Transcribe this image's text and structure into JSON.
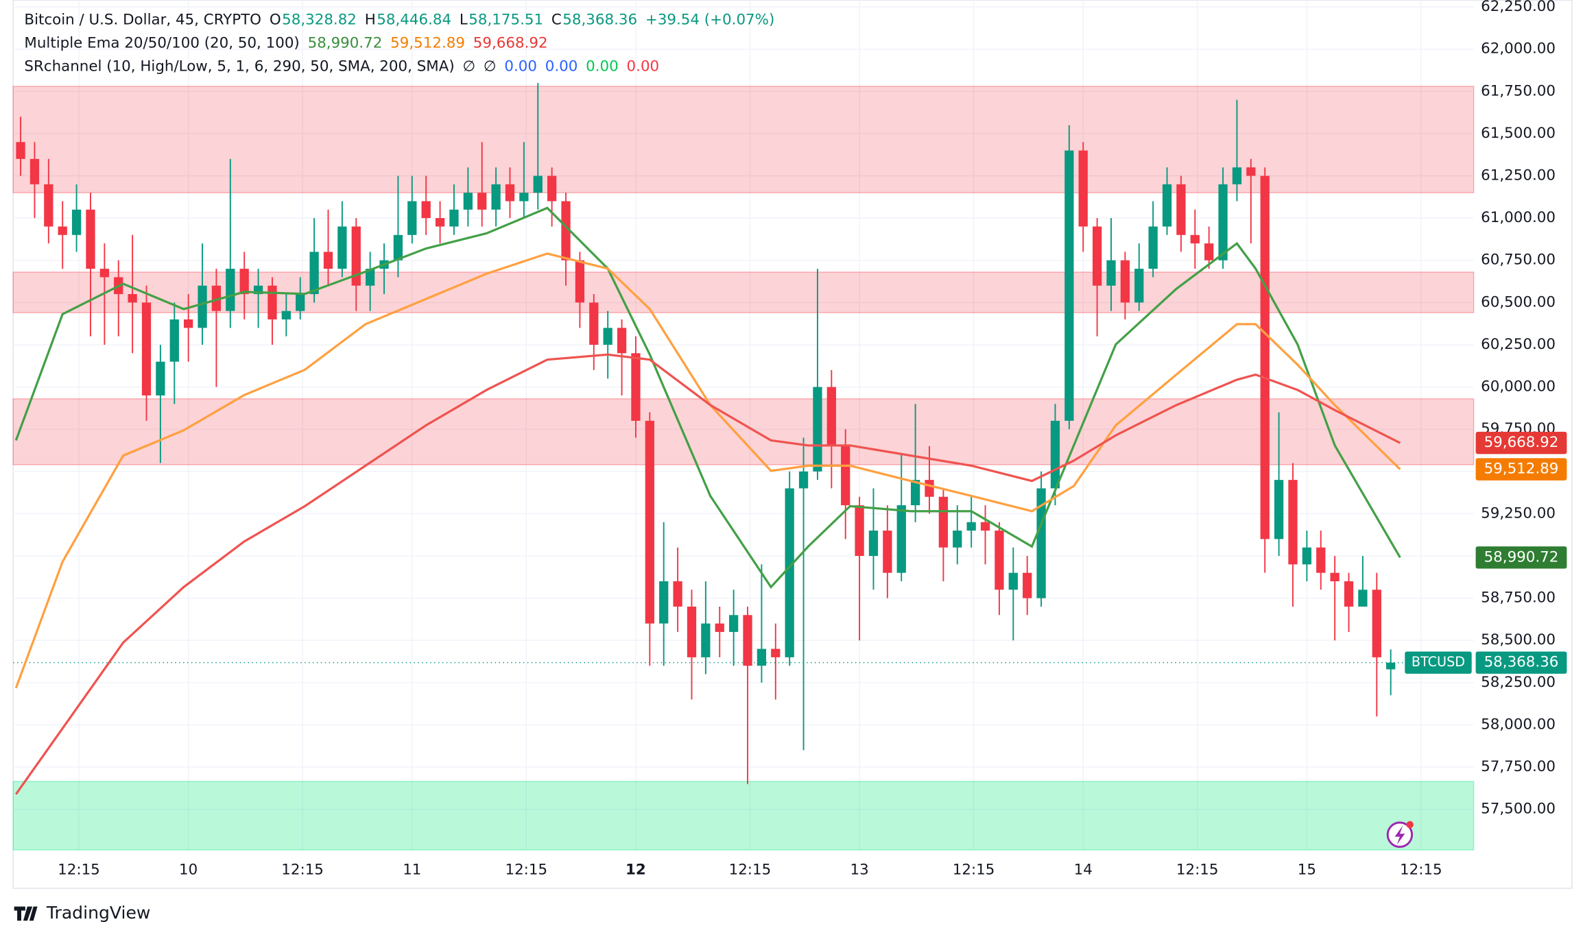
{
  "chart_data": {
    "type": "candlestick",
    "legend": {
      "rows": [
        [
          {
            "text": "Bitcoin / U.S. Dollar, 45, CRYPTO",
            "color": "#131722"
          },
          {
            "text": "O",
            "color": "#131722"
          },
          {
            "text": "58,328.82",
            "color": "#089981"
          },
          {
            "text": "H",
            "color": "#131722"
          },
          {
            "text": "58,446.84",
            "color": "#089981"
          },
          {
            "text": "L",
            "color": "#131722"
          },
          {
            "text": "58,175.51",
            "color": "#089981"
          },
          {
            "text": "C",
            "color": "#131722"
          },
          {
            "text": "58,368.36",
            "color": "#089981"
          },
          {
            "text": "+39.54 (+0.07%)",
            "color": "#089981"
          }
        ],
        [
          {
            "text": "Multiple Ema 20/50/100 (20, 50, 100)",
            "color": "#131722"
          },
          {
            "text": "58,990.72",
            "color": "#388e3c"
          },
          {
            "text": "59,512.89",
            "color": "#f57c00"
          },
          {
            "text": "59,668.92",
            "color": "#e53935"
          }
        ],
        [
          {
            "text": "SRchannel (10, High/Low, 5, 1, 6, 290, 50, SMA, 200, SMA)",
            "color": "#131722"
          },
          {
            "text": "∅",
            "color": "#131722"
          },
          {
            "text": "∅",
            "color": "#131722"
          },
          {
            "text": "0.00",
            "color": "#2962ff"
          },
          {
            "text": "0.00",
            "color": "#2962ff"
          },
          {
            "text": "0.00",
            "color": "#00c853"
          },
          {
            "text": "0.00",
            "color": "#f23645"
          }
        ]
      ]
    },
    "xlim": [
      -18.8,
      137.9
    ],
    "ylim": [
      57260,
      62290
    ],
    "xticks": [
      {
        "value": -11.75,
        "label": "12:15"
      },
      {
        "value": 0,
        "label": "10"
      },
      {
        "value": 12.25,
        "label": "12:15"
      },
      {
        "value": 24,
        "label": "11"
      },
      {
        "value": 36.25,
        "label": "12:15"
      },
      {
        "value": 48,
        "label": "12"
      },
      {
        "value": 60.25,
        "label": "12:15"
      },
      {
        "value": 72,
        "label": "13"
      },
      {
        "value": 84.25,
        "label": "12:15"
      },
      {
        "value": 96,
        "label": "14"
      },
      {
        "value": 108.25,
        "label": "12:15"
      },
      {
        "value": 120,
        "label": "15"
      },
      {
        "value": 132.25,
        "label": "12:15"
      }
    ],
    "yticks": [
      {
        "value": 57500,
        "label": "57,500.00"
      },
      {
        "value": 57750,
        "label": "57,750.00"
      },
      {
        "value": 58000,
        "label": "58,000.00"
      },
      {
        "value": 58250,
        "label": "58,250.00"
      },
      {
        "value": 58500,
        "label": "58,500.00"
      },
      {
        "value": 58750,
        "label": "58,750.00"
      },
      {
        "value": 59000,
        "label": "59,000.00"
      },
      {
        "value": 59250,
        "label": "59,250.00"
      },
      {
        "value": 59500,
        "label": "59,500.00"
      },
      {
        "value": 59750,
        "label": "59,750.00"
      },
      {
        "value": 60000,
        "label": "60,000.00"
      },
      {
        "value": 60250,
        "label": "60,250.00"
      },
      {
        "value": 60500,
        "label": "60,500.00"
      },
      {
        "value": 60750,
        "label": "60,750.00"
      },
      {
        "value": 61000,
        "label": "61,000.00"
      },
      {
        "value": 61250,
        "label": "61,250.00"
      },
      {
        "value": 61500,
        "label": "61,500.00"
      },
      {
        "value": 61750,
        "label": "61,750.00"
      },
      {
        "value": 62000,
        "label": "62,000.00"
      },
      {
        "value": 62250,
        "label": "62,250.00"
      }
    ],
    "grid": true,
    "up_color": "#089981",
    "down_color": "#f23645",
    "zones": [
      {
        "from": 61150,
        "to": 61780,
        "color": "#f23645"
      },
      {
        "from": 60440,
        "to": 60680,
        "color": "#f23645"
      },
      {
        "from": 59540,
        "to": 59930,
        "color": "#f23645"
      },
      {
        "from": 57260,
        "to": 57665,
        "color": "#00e676"
      }
    ],
    "candles": {
      "x": [
        -18,
        -16.5,
        -15,
        -13.5,
        -12,
        -10.5,
        -9,
        -7.5,
        -6,
        -4.5,
        -3,
        -1.5,
        0,
        1.5,
        3,
        4.5,
        6,
        7.5,
        9,
        10.5,
        12,
        13.5,
        15,
        16.5,
        18,
        19.5,
        21,
        22.5,
        24,
        25.5,
        27,
        28.5,
        30,
        31.5,
        33,
        34.5,
        36,
        37.5,
        39,
        40.5,
        42,
        43.5,
        45,
        46.5,
        48,
        49.5,
        51,
        52.5,
        54,
        55.5,
        57,
        58.5,
        60,
        61.5,
        63,
        64.5,
        66,
        67.5,
        69,
        70.5,
        72,
        73.5,
        75,
        76.5,
        78,
        79.5,
        81,
        82.5,
        84,
        85.5,
        87,
        88.5,
        90,
        91.5,
        93,
        94.5,
        96,
        97.5,
        99,
        100.5,
        102,
        103.5,
        105,
        106.5,
        108,
        109.5,
        111,
        112.5,
        114,
        115.5,
        117,
        118.5,
        120,
        121.5,
        123,
        124.5,
        126,
        127.5,
        129
      ],
      "open": [
        61450,
        61350,
        61200,
        60950,
        60900,
        61050,
        60700,
        60650,
        60550,
        60500,
        59950,
        60150,
        60400,
        60350,
        60600,
        60450,
        60700,
        60550,
        60600,
        60400,
        60450,
        60550,
        60800,
        60700,
        60950,
        60600,
        60700,
        60750,
        60900,
        61100,
        61000,
        60950,
        61050,
        61150,
        61050,
        61200,
        61100,
        61150,
        61250,
        61100,
        60750,
        60500,
        60250,
        60350,
        60200,
        59800,
        58600,
        58850,
        58700,
        58400,
        58600,
        58550,
        58650,
        58350,
        58450,
        58400,
        59400,
        59500,
        60000,
        59650,
        59300,
        59000,
        59150,
        58900,
        59300,
        59450,
        59350,
        59050,
        59150,
        59200,
        59150,
        58800,
        58900,
        58750,
        59400,
        59800,
        61400,
        60950,
        60600,
        60750,
        60500,
        60700,
        60950,
        61200,
        60900,
        60850,
        60750,
        61200,
        61300,
        61250,
        59100,
        59450,
        58950,
        59050,
        58900,
        58850,
        58700,
        58800,
        58328.82
      ],
      "high": [
        61600,
        61450,
        61350,
        61100,
        61200,
        61150,
        60850,
        60750,
        60900,
        60600,
        60250,
        60500,
        60550,
        60850,
        60700,
        61350,
        60800,
        60700,
        60650,
        60550,
        60650,
        61000,
        61050,
        61100,
        61000,
        60800,
        60850,
        61250,
        61250,
        61250,
        61100,
        61200,
        61300,
        61450,
        61300,
        61300,
        61450,
        61800,
        61300,
        61150,
        60800,
        60550,
        60450,
        60400,
        60300,
        59850,
        59200,
        59050,
        58800,
        58850,
        58700,
        58800,
        58700,
        58950,
        58600,
        59500,
        59700,
        60700,
        60100,
        59750,
        59350,
        59400,
        59300,
        59600,
        59900,
        59650,
        59400,
        59300,
        59350,
        59300,
        59200,
        59050,
        59000,
        59500,
        59900,
        61550,
        61450,
        61000,
        61000,
        60800,
        60850,
        61100,
        61300,
        61250,
        61050,
        60950,
        61300,
        61700,
        61350,
        61300,
        59850,
        59550,
        59150,
        59150,
        59000,
        58900,
        59000,
        58900,
        58446.84
      ],
      "low": [
        61250,
        61000,
        60850,
        60700,
        60800,
        60300,
        60250,
        60300,
        60200,
        59800,
        59550,
        59900,
        60150,
        60250,
        60000,
        60350,
        60400,
        60350,
        60250,
        60300,
        60400,
        60500,
        60600,
        60650,
        60450,
        60450,
        60550,
        60650,
        60850,
        60900,
        60850,
        60900,
        60950,
        60950,
        60950,
        61000,
        61000,
        61050,
        60950,
        60600,
        60350,
        60100,
        60050,
        59950,
        59700,
        58350,
        58350,
        58550,
        58150,
        58300,
        58400,
        58350,
        57650,
        58250,
        58150,
        58350,
        57850,
        59450,
        59400,
        59100,
        58500,
        58800,
        58750,
        58850,
        59200,
        59250,
        58850,
        58950,
        59050,
        58950,
        58650,
        58500,
        58650,
        58700,
        59300,
        59750,
        60800,
        60300,
        60450,
        60400,
        60450,
        60650,
        60900,
        60800,
        60700,
        60700,
        60700,
        61100,
        60850,
        58900,
        59000,
        58700,
        58850,
        58800,
        58500,
        58550,
        58700,
        58050,
        58175.51
      ],
      "close": [
        61350,
        61200,
        60950,
        60900,
        61050,
        60700,
        60650,
        60550,
        60500,
        59950,
        60150,
        60400,
        60350,
        60600,
        60450,
        60700,
        60550,
        60600,
        60400,
        60450,
        60550,
        60800,
        60700,
        60950,
        60600,
        60700,
        60750,
        60900,
        61100,
        61000,
        60950,
        61050,
        61150,
        61050,
        61200,
        61100,
        61150,
        61250,
        61100,
        60750,
        60500,
        60250,
        60350,
        60200,
        59800,
        58600,
        58850,
        58700,
        58400,
        58600,
        58550,
        58650,
        58350,
        58450,
        58400,
        59400,
        59500,
        60000,
        59650,
        59300,
        59000,
        59150,
        58900,
        59300,
        59450,
        59350,
        59050,
        59150,
        59200,
        59150,
        58800,
        58900,
        58750,
        59400,
        59800,
        61400,
        60950,
        60600,
        60750,
        60500,
        60700,
        60950,
        61200,
        60900,
        60850,
        60750,
        61200,
        61300,
        61250,
        59100,
        59450,
        58950,
        59050,
        58900,
        58850,
        58700,
        58800,
        58400,
        58368.36
      ]
    },
    "price_tag": {
      "name": "BTCUSD",
      "label": "58,368.36",
      "value": 58368.36,
      "color": "#089981"
    },
    "ema_x": [
      -18.5,
      -13.5,
      -7,
      -0.5,
      6,
      12.5,
      19,
      25.5,
      32,
      38.5,
      45,
      49.5,
      56,
      62.5,
      66.5,
      71,
      77.5,
      84,
      90.5,
      95,
      99.5,
      106,
      112.5,
      114.5,
      119,
      123,
      130
    ],
    "series": [
      {
        "name": "EMA 20",
        "color": "#43a047",
        "tag": "58,990.72",
        "values": [
          59684,
          60431,
          60611,
          60461,
          60563,
          60551,
          60683,
          60820,
          60910,
          61060,
          60701,
          60192,
          59355,
          58816,
          59056,
          59295,
          59265,
          59265,
          59056,
          59654,
          60252,
          60581,
          60850,
          60701,
          60252,
          59654,
          58990.72
        ]
      },
      {
        "name": "EMA 50",
        "color": "#ffa040",
        "tag": "59,512.89",
        "values": [
          58218,
          58966,
          59594,
          59744,
          59953,
          60102,
          60372,
          60521,
          60671,
          60790,
          60701,
          60461,
          59893,
          59504,
          59534,
          59534,
          59444,
          59355,
          59265,
          59414,
          59773,
          60073,
          60372,
          60372,
          60132,
          59893,
          59512.89
        ]
      },
      {
        "name": "EMA 100",
        "color": "#ef5350",
        "tag": "59,668.92",
        "values": [
          57590,
          57979,
          58487,
          58816,
          59086,
          59295,
          59534,
          59773,
          59983,
          60162,
          60192,
          60162,
          59893,
          59684,
          59654,
          59654,
          59594,
          59534,
          59444,
          59564,
          59714,
          59893,
          60043,
          60073,
          59983,
          59863,
          59668.92
        ]
      }
    ],
    "footer": "TradingView"
  }
}
